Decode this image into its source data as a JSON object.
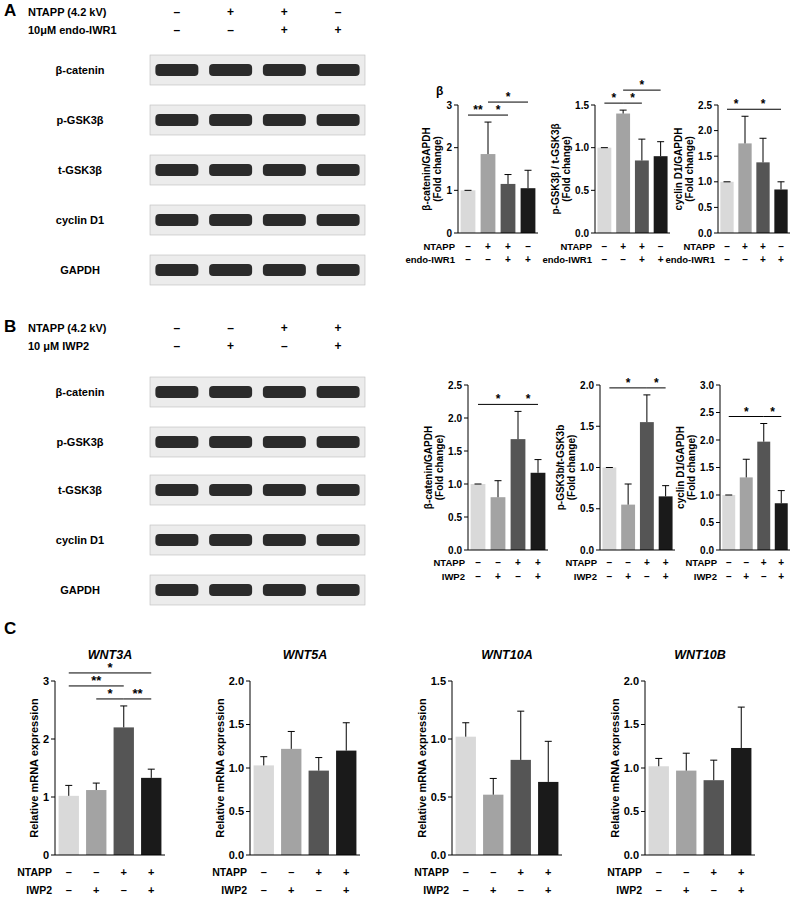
{
  "chart_data": [
    {
      "type": "bar",
      "title": "β",
      "y_label": [
        "β-catenin/GAPDH",
        "(Fold change)"
      ],
      "categories": [
        null,
        null,
        null,
        null
      ],
      "values": [
        1.0,
        1.85,
        1.15,
        1.05
      ],
      "errors": [
        0,
        0.75,
        0.22,
        0.42
      ],
      "colors": [
        "#d9d9d9",
        "#a3a3a3",
        "#555555",
        "#1a1a1a"
      ],
      "ylim": [
        0,
        3
      ],
      "yticks": [
        0,
        1,
        2,
        3
      ],
      "treatments": [
        {
          "name": "NTAPP",
          "signs": [
            "–",
            "+",
            "+",
            "–"
          ]
        },
        {
          "name": "endo-IWR1",
          "signs": [
            "–",
            "–",
            "+",
            "+"
          ]
        }
      ],
      "significance": [
        {
          "from": 0,
          "to": 1,
          "label": "**"
        },
        {
          "from": 1,
          "to": 2,
          "label": "*"
        },
        {
          "from": 1,
          "to": 3,
          "label": "*"
        }
      ]
    },
    {
      "type": "bar",
      "y_label": [
        "p-GSK3β / t-GSK3β",
        "(Fold change)"
      ],
      "categories": [
        null,
        null,
        null,
        null
      ],
      "values": [
        1.0,
        1.4,
        0.85,
        0.9
      ],
      "errors": [
        0,
        0.04,
        0.25,
        0.17
      ],
      "colors": [
        "#d9d9d9",
        "#a3a3a3",
        "#555555",
        "#1a1a1a"
      ],
      "ylim": [
        0,
        1.5
      ],
      "yticks": [
        {
          "value": 0,
          "label": "0.0"
        },
        0.5,
        {
          "value": 1,
          "label": "1.0"
        },
        1.5
      ],
      "treatments": [
        {
          "name": "NTAPP",
          "signs": [
            "–",
            "+",
            "+",
            "–"
          ]
        },
        {
          "name": "endo-IWR1",
          "signs": [
            "–",
            "–",
            "+",
            "+"
          ]
        }
      ],
      "significance": [
        {
          "from": 0,
          "to": 1,
          "label": "*"
        },
        {
          "from": 1,
          "to": 2,
          "label": "*"
        },
        {
          "from": 1,
          "to": 3,
          "label": "*"
        }
      ]
    },
    {
      "type": "bar",
      "y_label": [
        "cyclin D1/GAPDH",
        "(Fold change)"
      ],
      "categories": [
        null,
        null,
        null,
        null
      ],
      "values": [
        1.0,
        1.75,
        1.38,
        0.85
      ],
      "errors": [
        0,
        0.53,
        0.47,
        0.15
      ],
      "colors": [
        "#d9d9d9",
        "#a3a3a3",
        "#555555",
        "#1a1a1a"
      ],
      "ylim": [
        0,
        2.5
      ],
      "yticks": [
        {
          "value": 0,
          "label": "0.0"
        },
        0.5,
        {
          "value": 1,
          "label": "1.0"
        },
        1.5,
        {
          "value": 2,
          "label": "2.0"
        },
        2.5
      ],
      "treatments": [
        {
          "name": "NTAPP",
          "signs": [
            "–",
            "+",
            "+",
            "–"
          ]
        },
        {
          "name": "endo-IWR1",
          "signs": [
            "–",
            "–",
            "+",
            "+"
          ]
        }
      ],
      "significance": [
        {
          "from": 0,
          "to": 1,
          "label": "*"
        },
        {
          "from": 1,
          "to": 3,
          "label": "*"
        }
      ]
    },
    {
      "type": "bar",
      "y_label": [
        "β-catenin/GAPDH",
        "(Fold change)"
      ],
      "categories": [
        null,
        null,
        null,
        null
      ],
      "values": [
        1.0,
        0.8,
        1.68,
        1.17
      ],
      "errors": [
        0,
        0.25,
        0.42,
        0.2
      ],
      "colors": [
        "#d9d9d9",
        "#a3a3a3",
        "#555555",
        "#1a1a1a"
      ],
      "ylim": [
        0,
        2.5
      ],
      "yticks": [
        {
          "value": 0,
          "label": "0.0"
        },
        0.5,
        {
          "value": 1,
          "label": "1.0"
        },
        1.5,
        {
          "value": 2,
          "label": "2.0"
        },
        2.5
      ],
      "treatments": [
        {
          "name": "NTAPP",
          "signs": [
            "–",
            "–",
            "+",
            "+"
          ]
        },
        {
          "name": "IWP2",
          "signs": [
            "–",
            "+",
            "–",
            "+"
          ]
        }
      ],
      "significance": [
        {
          "from": 0,
          "to": 2,
          "label": "*"
        },
        {
          "from": 2,
          "to": 3,
          "label": "*"
        }
      ]
    },
    {
      "type": "bar",
      "y_label": [
        "p-GSK3b/t-GSK3b",
        "(Fold change)"
      ],
      "categories": [
        null,
        null,
        null,
        null
      ],
      "values": [
        1.0,
        0.55,
        1.55,
        0.65
      ],
      "errors": [
        0,
        0.25,
        0.33,
        0.13
      ],
      "colors": [
        "#d9d9d9",
        "#a3a3a3",
        "#555555",
        "#1a1a1a"
      ],
      "ylim": [
        0,
        2
      ],
      "yticks": [
        {
          "value": 0,
          "label": "0.0"
        },
        0.5,
        {
          "value": 1,
          "label": "1.0"
        },
        1.5,
        {
          "value": 2,
          "label": "2.0"
        }
      ],
      "treatments": [
        {
          "name": "NTAPP",
          "signs": [
            "–",
            "–",
            "+",
            "+"
          ]
        },
        {
          "name": "IWP2",
          "signs": [
            "–",
            "+",
            "–",
            "+"
          ]
        }
      ],
      "significance": [
        {
          "from": 0,
          "to": 2,
          "label": "*"
        },
        {
          "from": 2,
          "to": 3,
          "label": "*"
        }
      ]
    },
    {
      "type": "bar",
      "y_label": [
        "cyclin D1/GAPDH",
        "(Fold change)"
      ],
      "categories": [
        null,
        null,
        null,
        null
      ],
      "values": [
        1.0,
        1.32,
        1.97,
        0.85
      ],
      "errors": [
        0,
        0.33,
        0.33,
        0.23
      ],
      "colors": [
        "#d9d9d9",
        "#a3a3a3",
        "#555555",
        "#1a1a1a"
      ],
      "ylim": [
        0,
        3
      ],
      "yticks": [
        {
          "value": 0,
          "label": "0.0"
        },
        0.5,
        {
          "value": 1,
          "label": "1.0"
        },
        1.5,
        {
          "value": 2,
          "label": "2.0"
        },
        2.5,
        {
          "value": 3,
          "label": "3.0"
        }
      ],
      "treatments": [
        {
          "name": "NTAPP",
          "signs": [
            "–",
            "–",
            "+",
            "+"
          ]
        },
        {
          "name": "IWP2",
          "signs": [
            "–",
            "+",
            "–",
            "+"
          ]
        }
      ],
      "significance": [
        {
          "from": 0,
          "to": 2,
          "label": "*"
        },
        {
          "from": 2,
          "to": 3,
          "label": "*"
        }
      ]
    },
    {
      "type": "bar",
      "title": "WNT3A",
      "y_label": [
        "Relative mRNA expression"
      ],
      "categories": [
        null,
        null,
        null,
        null
      ],
      "values": [
        1.02,
        1.12,
        2.2,
        1.33
      ],
      "errors": [
        0.18,
        0.12,
        0.37,
        0.15
      ],
      "colors": [
        "#d9d9d9",
        "#a3a3a3",
        "#555555",
        "#1a1a1a"
      ],
      "ylim": [
        0,
        3
      ],
      "yticks": [
        0,
        1,
        2,
        3
      ],
      "treatments": [
        {
          "name": "NTAPP",
          "signs": [
            "–",
            "–",
            "+",
            "+"
          ]
        },
        {
          "name": "IWP2",
          "signs": [
            "–",
            "+",
            "–",
            "+"
          ]
        }
      ],
      "significance": [
        {
          "from": 0,
          "to": 3,
          "label": "*"
        },
        {
          "from": 0,
          "to": 2,
          "label": "**"
        },
        {
          "from": 1,
          "to": 2,
          "label": "*"
        },
        {
          "from": 2,
          "to": 3,
          "label": "**"
        }
      ]
    },
    {
      "type": "bar",
      "title": "WNT5A",
      "y_label": [
        "Relative mRNA expression"
      ],
      "categories": [
        null,
        null,
        null,
        null
      ],
      "values": [
        1.03,
        1.22,
        0.97,
        1.2
      ],
      "errors": [
        0.1,
        0.2,
        0.15,
        0.32
      ],
      "colors": [
        "#d9d9d9",
        "#a3a3a3",
        "#555555",
        "#1a1a1a"
      ],
      "ylim": [
        0,
        2
      ],
      "yticks": [
        {
          "value": 0,
          "label": "0.0"
        },
        0.5,
        {
          "value": 1,
          "label": "1.0"
        },
        1.5,
        {
          "value": 2,
          "label": "2.0"
        }
      ],
      "treatments": [
        {
          "name": "NTAPP",
          "signs": [
            "–",
            "–",
            "+",
            "+"
          ]
        },
        {
          "name": "IWP2",
          "signs": [
            "–",
            "+",
            "–",
            "+"
          ]
        }
      ],
      "significance": []
    },
    {
      "type": "bar",
      "title": "WNT10A",
      "y_label": [
        "Relative mRNA expression"
      ],
      "categories": [
        null,
        null,
        null,
        null
      ],
      "values": [
        1.02,
        0.52,
        0.82,
        0.63
      ],
      "errors": [
        0.12,
        0.14,
        0.42,
        0.35
      ],
      "colors": [
        "#d9d9d9",
        "#a3a3a3",
        "#555555",
        "#1a1a1a"
      ],
      "ylim": [
        0,
        1.5
      ],
      "yticks": [
        {
          "value": 0,
          "label": "0.0"
        },
        0.5,
        {
          "value": 1,
          "label": "1.0"
        },
        1.5
      ],
      "treatments": [
        {
          "name": "NTAPP",
          "signs": [
            "–",
            "–",
            "+",
            "+"
          ]
        },
        {
          "name": "IWP2",
          "signs": [
            "–",
            "+",
            "–",
            "+"
          ]
        }
      ],
      "significance": []
    },
    {
      "type": "bar",
      "title": "WNT10B",
      "y_label": [
        "Relative mRNA expression"
      ],
      "categories": [
        null,
        null,
        null,
        null
      ],
      "values": [
        1.02,
        0.97,
        0.86,
        1.23
      ],
      "errors": [
        0.09,
        0.2,
        0.23,
        0.47
      ],
      "colors": [
        "#d9d9d9",
        "#a3a3a3",
        "#555555",
        "#1a1a1a"
      ],
      "ylim": [
        0,
        2
      ],
      "yticks": [
        {
          "value": 0,
          "label": "0.0"
        },
        0.5,
        {
          "value": 1,
          "label": "1.0"
        },
        1.5,
        {
          "value": 2,
          "label": "2.0"
        }
      ],
      "treatments": [
        {
          "name": "NTAPP",
          "signs": [
            "–",
            "–",
            "+",
            "+"
          ]
        },
        {
          "name": "IWP2",
          "signs": [
            "–",
            "+",
            "–",
            "+"
          ]
        }
      ],
      "significance": []
    }
  ],
  "figure": {
    "panel_labels": [
      "A",
      "B",
      "C"
    ],
    "blots": [
      {
        "treatments": [
          {
            "label": "NTAPP (4.2 kV)",
            "signs": [
              "–",
              "+",
              "+",
              "–"
            ]
          },
          {
            "label": "10μM endo-IWR1",
            "signs": [
              "–",
              "–",
              "+",
              "+"
            ]
          }
        ],
        "rows": [
          "β-catenin",
          "p-GSK3β",
          "t-GSK3β",
          "cyclin D1",
          "GAPDH"
        ]
      },
      {
        "treatments": [
          {
            "label": "NTAPP (4.2 kV)",
            "signs": [
              "–",
              "–",
              "+",
              "+"
            ]
          },
          {
            "label": "10 μM IWP2",
            "signs": [
              "–",
              "+",
              "–",
              "+"
            ]
          }
        ],
        "rows": [
          "β-catenin",
          "p-GSK3β",
          "t-GSK3β",
          "cyclin D1",
          "GAPDH"
        ]
      }
    ]
  }
}
